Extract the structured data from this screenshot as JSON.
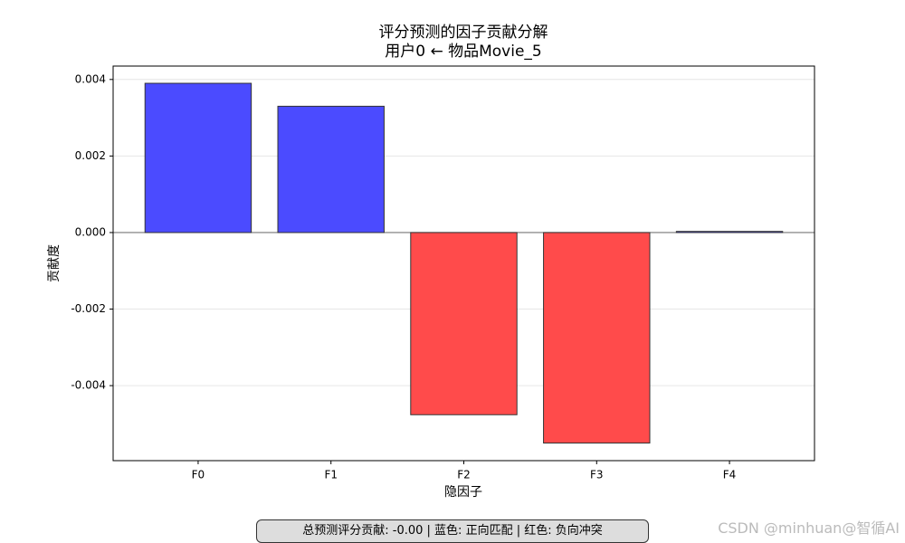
{
  "chart_data": {
    "type": "bar",
    "title": "评分预测的因子贡献分解",
    "subtitle": "用户0 ← 物品Movie_5",
    "xlabel": "隐因子",
    "ylabel": "贡献度",
    "categories": [
      "F0",
      "F1",
      "F2",
      "F3",
      "F4"
    ],
    "values": [
      0.0039,
      0.0033,
      -0.00476,
      -0.0055,
      3e-05
    ],
    "colors": [
      "#4b4bff",
      "#4b4bff",
      "#ff4b4b",
      "#ff4b4b",
      "#4b4bff"
    ],
    "ylim": [
      -0.00596,
      0.00435
    ],
    "yticks": [
      -0.004,
      -0.002,
      {
        "value": 0,
        "label": "0.000"
      },
      0.002,
      0.004
    ],
    "grid": true,
    "annotation": "总预测评分贡献: -0.00 | 蓝色: 正向匹配 | 红色: 负向冲突",
    "watermark": "CSDN @minhuan@智循AI"
  }
}
